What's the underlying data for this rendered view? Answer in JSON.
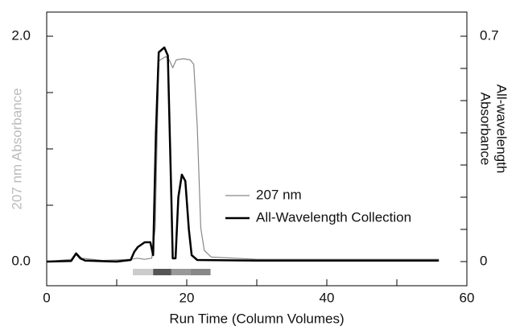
{
  "chart_data": {
    "type": "line",
    "xlabel": "Run Time (Column Volumes)",
    "ylabel": "207 nm Absorbance",
    "ylabel_color": "#bbbbbb",
    "y2label": [
      "All-wavelength",
      "Absorbance"
    ],
    "xlim": [
      0,
      60
    ],
    "xticks": [
      0,
      {
        "value": 10,
        "label": null
      },
      20,
      {
        "value": 30,
        "label": null
      },
      40,
      {
        "value": 50,
        "label": null
      },
      60
    ],
    "ylim": [
      0,
      2
    ],
    "yticks": [
      {
        "value": 0,
        "label": "0.0"
      },
      {
        "value": 0.5,
        "label": null
      },
      {
        "value": 1,
        "label": null
      },
      {
        "value": 1.5,
        "label": null
      },
      {
        "value": 2,
        "label": "2.0"
      }
    ],
    "y2lim": [
      0,
      0.7
    ],
    "y2ticks": [
      0,
      {
        "value": 0.1,
        "label": null
      },
      {
        "value": 0.2,
        "label": null
      },
      {
        "value": 0.3,
        "label": null
      },
      {
        "value": 0.4,
        "label": null
      },
      {
        "value": 0.5,
        "label": null
      },
      {
        "value": 0.6,
        "label": null
      },
      0.7
    ],
    "series": [
      {
        "name": "207 nm",
        "color": "#888888",
        "width": 1.2,
        "x": [
          0,
          3.5,
          4.2,
          5,
          8,
          12,
          13,
          14,
          15,
          15.5,
          16,
          16.5,
          17,
          17.5,
          18,
          18.5,
          19.5,
          20.5,
          21,
          21.5,
          22,
          22.5,
          23.5,
          30,
          56
        ],
        "values": [
          0,
          0.02,
          0.08,
          0.03,
          0.01,
          0.02,
          0.03,
          0.02,
          0.03,
          0.3,
          1.78,
          1.8,
          1.82,
          1.79,
          1.72,
          1.79,
          1.8,
          1.79,
          1.75,
          1.2,
          0.3,
          0.1,
          0.04,
          0.02,
          0.02
        ]
      },
      {
        "name": "All-Wavelength Collection",
        "color": "#000000",
        "width": 2.5,
        "axis": "y2",
        "x": [
          0,
          3.5,
          4.2,
          4.8,
          5.5,
          10,
          12,
          12.5,
          13,
          14,
          14.8,
          15.2,
          15.6,
          16,
          16.8,
          17.3,
          17.8,
          18,
          18.4,
          18.8,
          19.3,
          19.8,
          20.3,
          20.7,
          21.5,
          30,
          56
        ],
        "values": [
          0,
          0.002,
          0.025,
          0.01,
          0.003,
          0,
          0.005,
          0.03,
          0.045,
          0.06,
          0.06,
          0.02,
          0.4,
          0.65,
          0.665,
          0.64,
          0.2,
          0.01,
          0.01,
          0.2,
          0.27,
          0.25,
          0.1,
          0.02,
          0.005,
          0.003,
          0.003
        ]
      }
    ],
    "fractions": [
      {
        "start": 12.3,
        "end": 15.2,
        "color": "#cccccc"
      },
      {
        "start": 15.2,
        "end": 17.8,
        "color": "#555555"
      },
      {
        "start": 17.8,
        "end": 20.5,
        "color": "#999999"
      },
      {
        "start": 20.5,
        "end": 23.4,
        "color": "#888888"
      }
    ]
  }
}
